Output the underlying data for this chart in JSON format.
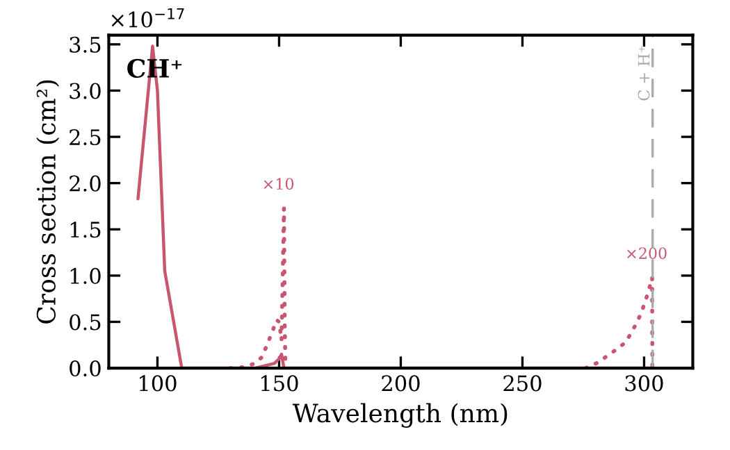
{
  "chart_data": {
    "type": "line",
    "xlabel": "Wavelength (nm)",
    "ylabel": "Cross section (cm²)",
    "xlim": [
      80,
      320
    ],
    "xticks": [
      100,
      150,
      200,
      250,
      300
    ],
    "ylim": [
      0,
      3.6
    ],
    "yticks": [
      {
        "value": 0,
        "label": "0.0"
      },
      0.5,
      {
        "value": 1,
        "label": "1.0"
      },
      1.5,
      {
        "value": 2,
        "label": "2.0"
      },
      2.5,
      {
        "value": 3,
        "label": "3.0"
      },
      3.5
    ],
    "grid": false,
    "legend": false,
    "marker": "none",
    "series": [
      {
        "x": [
          92,
          98,
          100,
          103,
          110,
          140,
          148,
          150,
          151,
          152,
          200,
          250,
          303
        ],
        "values": [
          1.83,
          3.48,
          3.0,
          1.05,
          0,
          0,
          0.05,
          0.1,
          0.15,
          0,
          0,
          0,
          0
        ],
        "color": "#c8566e",
        "line_style": "solid"
      },
      {
        "x": [
          130,
          135,
          140,
          143,
          145,
          147,
          149,
          150,
          151,
          152,
          152.3,
          152.6
        ],
        "values": [
          0,
          0.01,
          0.05,
          0.12,
          0.25,
          0.38,
          0.52,
          0.5,
          0.3,
          1.73,
          0.5,
          0
        ],
        "color": "#c8566e",
        "line_style": "dotted"
      },
      {
        "x": [
          276,
          281,
          288.5,
          292.5,
          297,
          299,
          300.6,
          302,
          303.3,
          303.4
        ],
        "values": [
          0,
          0.06,
          0.2,
          0.28,
          0.49,
          0.61,
          0.73,
          0.85,
          0.98,
          0
        ],
        "color": "#c8566e",
        "line_style": "dotted"
      }
    ],
    "ref_lines": [
      {
        "axis": "x",
        "value": 303.5,
        "label": "C + H⁺",
        "color": "#aaaaaa",
        "line_style": "dashed"
      }
    ],
    "annotations": [
      "×10$^{−17}$",
      "CH⁺",
      "×10",
      "×200"
    ]
  }
}
